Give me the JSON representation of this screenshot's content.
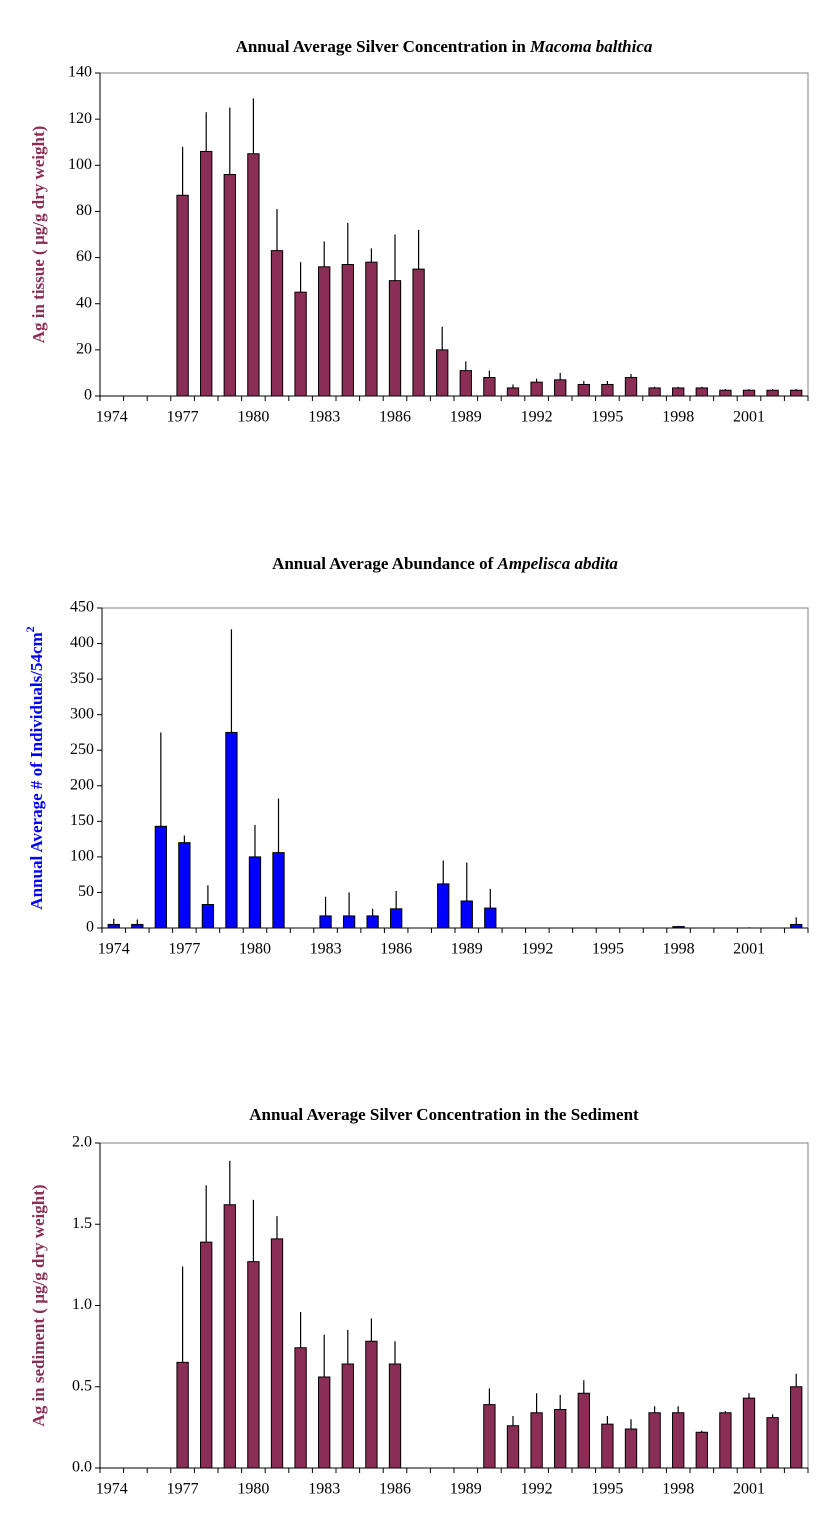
{
  "chart_data": [
    {
      "type": "bar",
      "title": "Annual Average Silver Concentration in",
      "title_italic": "Macoma balthica",
      "ylabel": "Ag in tissue ( µg/g dry weight)",
      "color": "#8b2e55",
      "categories": [
        "1974",
        null,
        null,
        "1977",
        null,
        null,
        "1980",
        null,
        null,
        "1983",
        null,
        null,
        "1986",
        null,
        null,
        "1989",
        null,
        null,
        "1992",
        null,
        null,
        "1995",
        null,
        null,
        "1998",
        null,
        null,
        "2001",
        null,
        null
      ],
      "values": [
        null,
        null,
        null,
        87,
        106,
        96,
        105,
        63,
        45,
        56,
        57,
        58,
        50,
        55,
        20,
        11,
        8,
        3.5,
        6,
        7,
        5,
        5,
        8,
        3.5,
        3.5,
        3.5,
        2.5,
        2.5,
        2.5,
        2.5
      ],
      "errors": [
        null,
        null,
        null,
        21,
        17,
        29,
        24,
        18,
        13,
        11,
        18,
        6,
        20,
        17,
        10,
        4,
        3,
        1.5,
        1.5,
        3,
        1.5,
        1.5,
        1.5,
        0.5,
        0.5,
        0.5,
        0.5,
        0.5,
        0.5,
        0.5
      ],
      "ylim": [
        0,
        140
      ],
      "yticks": [
        0,
        20,
        40,
        60,
        80,
        100,
        120,
        140
      ]
    },
    {
      "type": "bar",
      "title": "Annual Average Abundance of",
      "title_italic": "Ampelisca abdita",
      "ylabel": "Annual Average # of Individuals/54cm",
      "ylabel_sup": "2",
      "color": "#0000ff",
      "categories": [
        "1974",
        null,
        null,
        "1977",
        null,
        null,
        "1980",
        null,
        null,
        "1983",
        null,
        null,
        "1986",
        null,
        null,
        "1989",
        null,
        null,
        "1992",
        null,
        null,
        "1995",
        null,
        null,
        "1998",
        null,
        null,
        "2001",
        null,
        null
      ],
      "values": [
        5,
        5,
        143,
        120,
        33,
        275,
        100,
        106,
        0,
        17,
        17,
        17,
        27,
        0,
        62,
        38,
        28,
        0,
        0,
        0,
        0,
        0,
        0,
        0,
        2,
        0,
        0,
        0,
        0,
        5
      ],
      "errors": [
        8,
        7,
        132,
        10,
        27,
        145,
        45,
        76,
        0,
        27,
        33,
        10,
        25,
        0,
        33,
        54,
        27,
        0,
        0,
        0,
        0,
        0,
        0,
        0,
        1,
        0,
        0,
        1,
        0,
        10
      ],
      "ylim": [
        0,
        450
      ],
      "yticks": [
        0,
        50,
        100,
        150,
        200,
        250,
        300,
        350,
        400,
        450
      ]
    },
    {
      "type": "bar",
      "title": "Annual Average Silver Concentration in the Sediment",
      "ylabel": "Ag in sediment ( µg/g dry weight)",
      "color": "#8b2e55",
      "categories": [
        "1974",
        null,
        null,
        "1977",
        null,
        null,
        "1980",
        null,
        null,
        "1983",
        null,
        null,
        "1986",
        null,
        null,
        "1989",
        null,
        null,
        "1992",
        null,
        null,
        "1995",
        null,
        null,
        "1998",
        null,
        null,
        "2001",
        null,
        null
      ],
      "values": [
        null,
        null,
        null,
        0.65,
        1.39,
        1.62,
        1.27,
        1.41,
        0.74,
        0.56,
        0.64,
        0.78,
        0.64,
        null,
        null,
        null,
        0.39,
        0.26,
        0.34,
        0.36,
        0.46,
        0.27,
        0.24,
        0.34,
        0.34,
        0.22,
        0.34,
        0.43,
        0.31,
        0.5
      ],
      "errors": [
        null,
        null,
        null,
        0.59,
        0.35,
        0.27,
        0.38,
        0.14,
        0.22,
        0.26,
        0.21,
        0.14,
        0.14,
        null,
        null,
        null,
        0.1,
        0.06,
        0.12,
        0.09,
        0.08,
        0.05,
        0.06,
        0.04,
        0.04,
        0.01,
        0.01,
        0.03,
        0.02,
        0.08
      ],
      "ylim": [
        0,
        2
      ],
      "yticks": [
        {
          "value": 0,
          "label": "0.0"
        },
        {
          "value": 0.5,
          "label": "0.5"
        },
        {
          "value": 1,
          "label": "1.0"
        },
        {
          "value": 1.5,
          "label": "1.5"
        },
        {
          "value": 2,
          "label": "2.0"
        }
      ]
    }
  ]
}
